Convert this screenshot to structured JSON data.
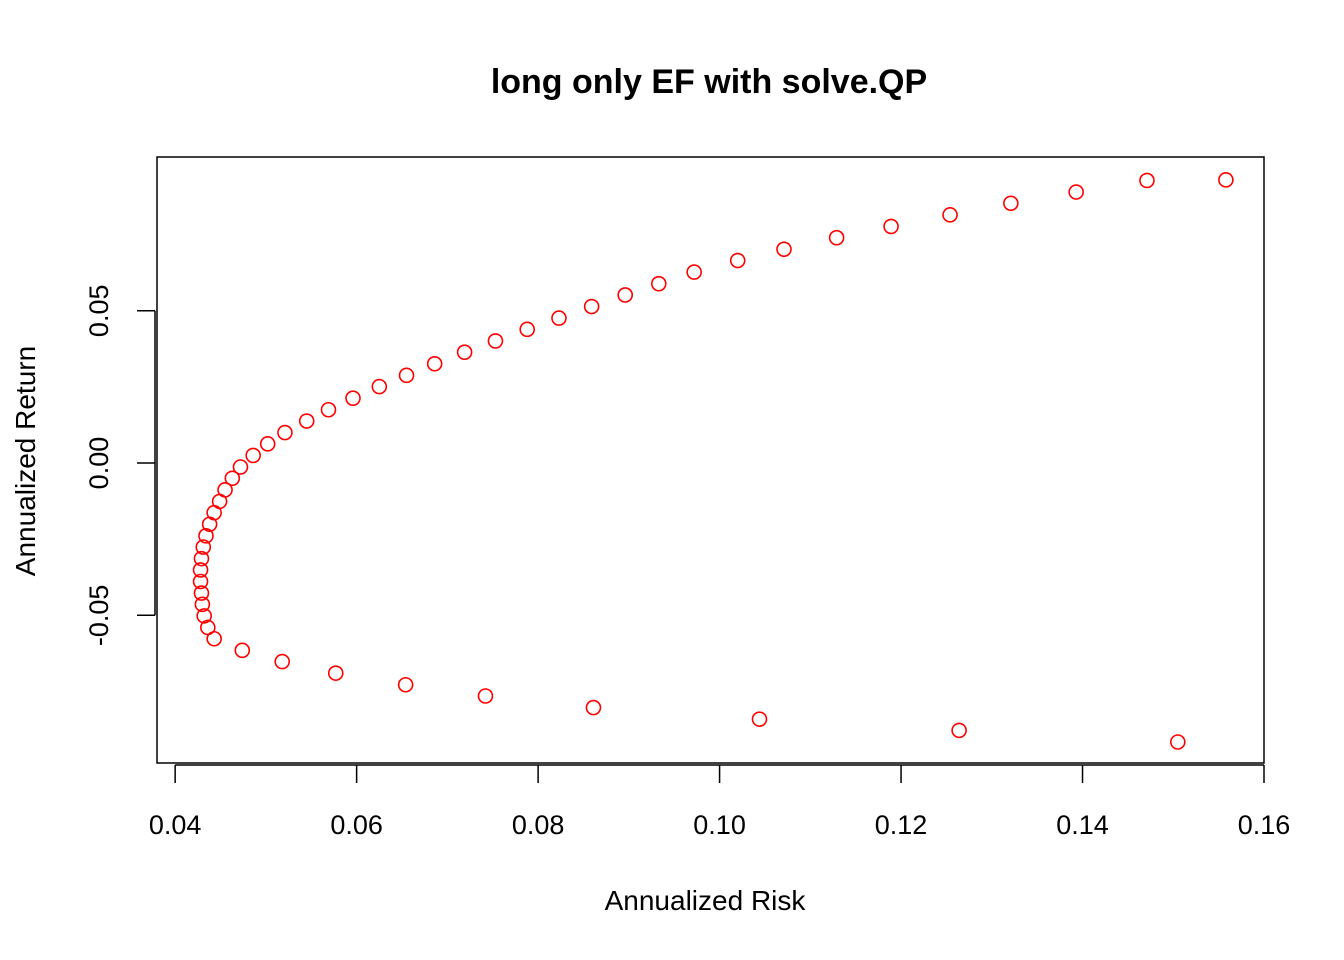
{
  "chart_data": {
    "type": "scatter",
    "title": "long only EF with solve.QP",
    "xlabel": "Annualized Risk",
    "ylabel": "Annualized Return",
    "xlim": [
      0.038,
      0.16
    ],
    "ylim": [
      -0.0985,
      0.1005
    ],
    "x_ticks": [
      0.04,
      0.06,
      0.08,
      0.1,
      0.12,
      0.14,
      0.16
    ],
    "x_tick_labels": [
      "0.04",
      "0.06",
      "0.08",
      "0.10",
      "0.12",
      "0.14",
      "0.16"
    ],
    "y_ticks": [
      -0.05,
      0.0,
      0.05
    ],
    "y_tick_labels": [
      "-0.05",
      "0.00",
      "0.05"
    ],
    "grid": false,
    "point_style": "open-circle",
    "colors": {
      "points": "#ff0000",
      "axes": "#000000"
    },
    "series": [
      {
        "x": [
          0.1505,
          0.1264,
          0.1044,
          0.0861,
          0.0742,
          0.0654,
          0.0577,
          0.0518,
          0.0474,
          0.0443,
          0.0436,
          0.0432,
          0.043,
          0.0429,
          0.0428,
          0.0428,
          0.0429,
          0.0431,
          0.0434,
          0.0438,
          0.0443,
          0.0449,
          0.0455,
          0.0463,
          0.0472,
          0.0486,
          0.0502,
          0.0521,
          0.0545,
          0.0569,
          0.0596,
          0.0625,
          0.0655,
          0.0686,
          0.0719,
          0.0753,
          0.0788,
          0.0823,
          0.0859,
          0.0896,
          0.0933,
          0.0972,
          0.102,
          0.1071,
          0.1129,
          0.1189,
          0.1254,
          0.1321,
          0.1393,
          0.1471,
          0.1558
        ],
        "y": [
          -0.0916,
          -0.0878,
          -0.0841,
          -0.0803,
          -0.0765,
          -0.0728,
          -0.069,
          -0.0652,
          -0.0615,
          -0.0577,
          -0.054,
          -0.0502,
          -0.0464,
          -0.0427,
          -0.0389,
          -0.0351,
          -0.0314,
          -0.0276,
          -0.0239,
          -0.0201,
          -0.0163,
          -0.0126,
          -0.0088,
          -0.005,
          -0.0013,
          0.0025,
          0.0063,
          0.01,
          0.0138,
          0.0175,
          0.0213,
          0.0251,
          0.0288,
          0.0326,
          0.0364,
          0.0401,
          0.0439,
          0.0476,
          0.0514,
          0.0552,
          0.0589,
          0.0627,
          0.0665,
          0.0702,
          0.074,
          0.0777,
          0.0815,
          0.0853,
          0.089,
          0.0928,
          0.093
        ]
      }
    ]
  }
}
